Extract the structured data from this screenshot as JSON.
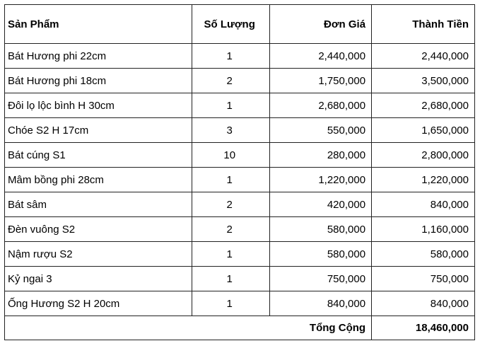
{
  "headers": [
    "Sản Phẩm",
    "Số Lượng",
    "Đơn Giá",
    "Thành Tiền"
  ],
  "rows": [
    [
      "Bát Hương phi 22cm",
      "1",
      "2,440,000",
      "2,440,000"
    ],
    [
      "Bát Hương phi 18cm",
      "2",
      "1,750,000",
      "3,500,000"
    ],
    [
      "Đôi lọ lộc bình H 30cm",
      "1",
      "2,680,000",
      "2,680,000"
    ],
    [
      "Chóe S2 H 17cm",
      "3",
      "550,000",
      "1,650,000"
    ],
    [
      "Bát cúng S1",
      "10",
      "280,000",
      "2,800,000"
    ],
    [
      "Mâm bồng phi 28cm",
      "1",
      "1,220,000",
      "1,220,000"
    ],
    [
      "Bát sâm",
      "2",
      "420,000",
      "840,000"
    ],
    [
      "Đèn vuông S2",
      "2",
      "580,000",
      "1,160,000"
    ],
    [
      "Nậm rượu S2",
      "1",
      "580,000",
      "580,000"
    ],
    [
      "Kỷ ngai 3",
      "1",
      "750,000",
      "750,000"
    ],
    [
      "Ống Hương S2 H 20cm",
      "1",
      "840,000",
      "840,000"
    ]
  ],
  "total": {
    "label": "Tổng Cộng",
    "value": "18,460,000"
  }
}
